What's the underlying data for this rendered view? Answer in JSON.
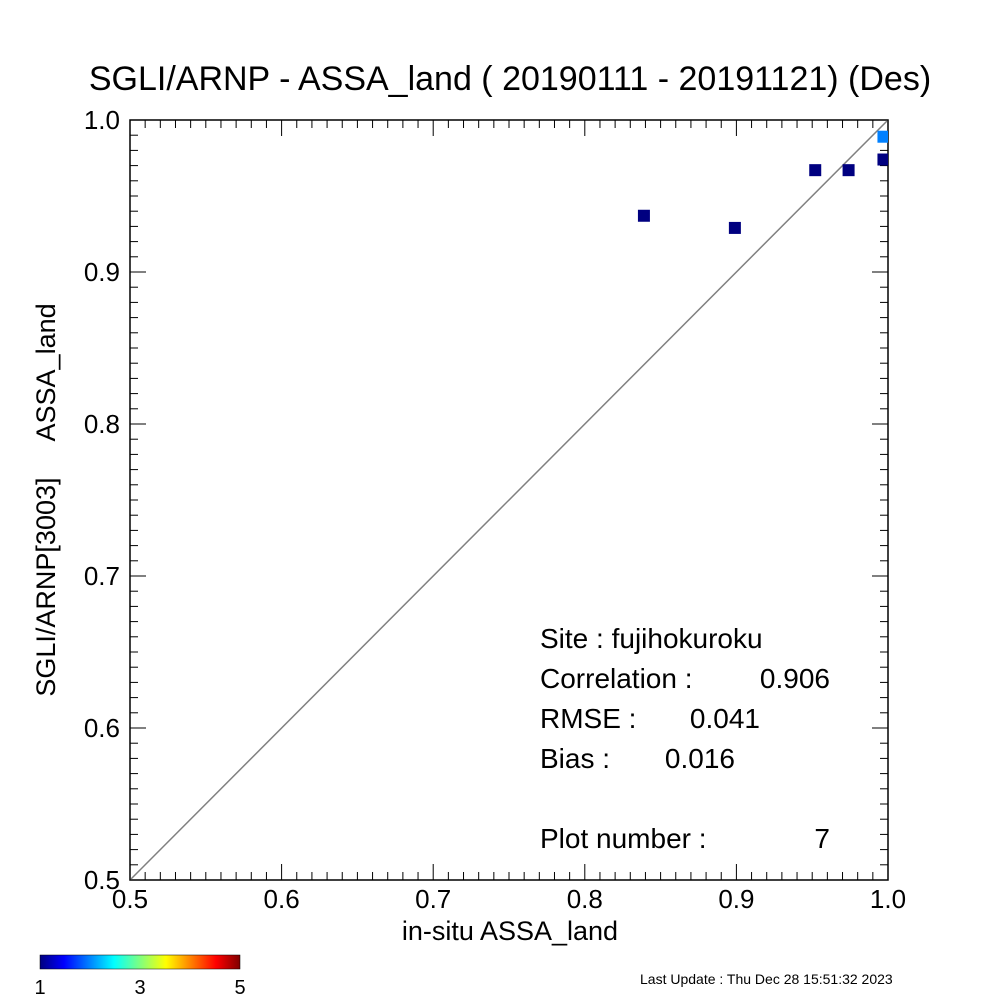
{
  "chart_data": {
    "type": "scatter",
    "title": "SGLI/ARNP - ASSA_land ( 20190111 - 20191121) (Des)",
    "xlabel": "in-situ ASSA_land",
    "ylabel": "SGLI/ARNP[3003]     ASSA_land",
    "xlim": [
      0.5,
      1.0
    ],
    "ylim": [
      0.5,
      1.0
    ],
    "xticks": [
      "0.5",
      "0.6",
      "0.7",
      "0.8",
      "0.9",
      "1.0"
    ],
    "yticks": [
      "0.5",
      "0.6",
      "0.7",
      "0.8",
      "0.9",
      "1.0"
    ],
    "one_to_one_line": true,
    "grid": false,
    "points": [
      {
        "x": 0.839,
        "y": 0.937,
        "count": 1
      },
      {
        "x": 0.899,
        "y": 0.929,
        "count": 1
      },
      {
        "x": 0.952,
        "y": 0.967,
        "count": 1
      },
      {
        "x": 0.974,
        "y": 0.967,
        "count": 1
      },
      {
        "x": 0.997,
        "y": 0.974,
        "count": 1
      },
      {
        "x": 0.997,
        "y": 0.989,
        "count": 2
      }
    ],
    "stats": {
      "site": "Site : fujihokuroku",
      "correlation_label": "Correlation :",
      "correlation": "0.906",
      "rmse_label": "RMSE :",
      "rmse": "0.041",
      "bias_label": "Bias :",
      "bias": "0.016",
      "plot_number_label": "Plot number :",
      "plot_number": "7"
    },
    "colorbar": {
      "colormap": "jet",
      "min": 1,
      "max": 5,
      "labels": [
        "1",
        "3",
        "5"
      ]
    }
  },
  "footer": {
    "last_update": "Last Update : Thu Dec 28 15:51:32 2023"
  }
}
